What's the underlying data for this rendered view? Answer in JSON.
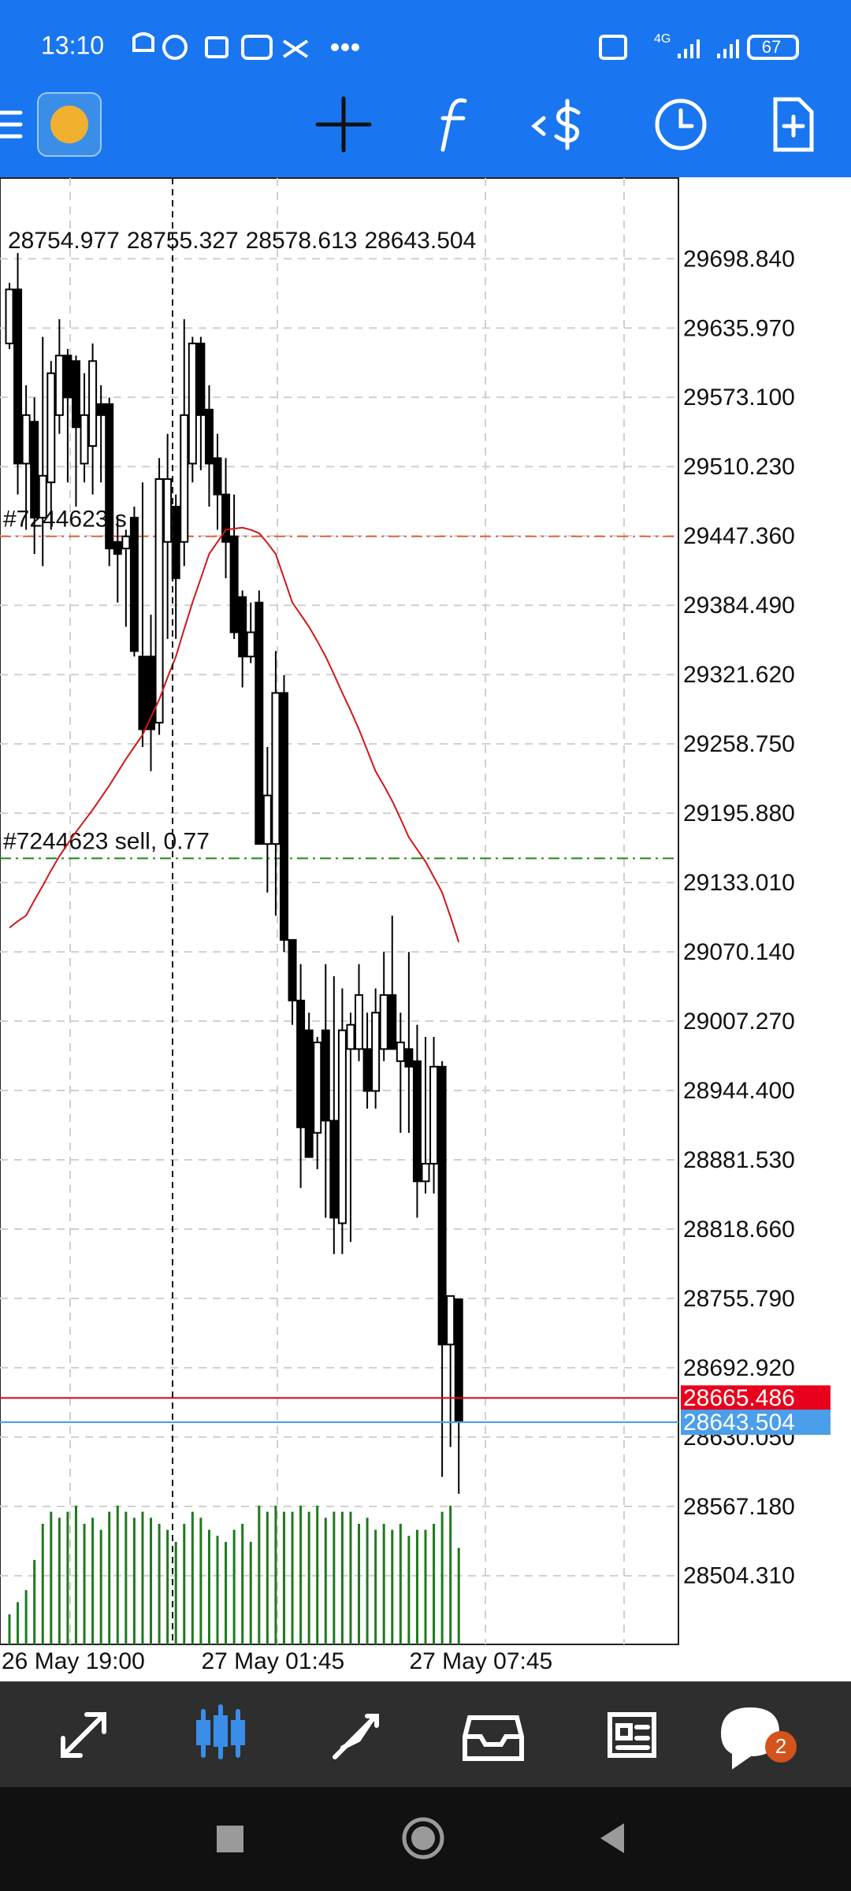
{
  "status_bar": {
    "time": "13:10",
    "network": "4G",
    "battery": "67"
  },
  "chart_data": {
    "type": "candlestick",
    "categories": [
      "26 May 19:00",
      null,
      null,
      null,
      null,
      null,
      null,
      null,
      null,
      null,
      null,
      null,
      null,
      null,
      null,
      null,
      null,
      null,
      null,
      null,
      null,
      null,
      null,
      null,
      "27 May 01:45",
      null,
      null,
      null,
      null,
      null,
      null,
      null,
      null,
      null,
      null,
      null,
      null,
      null,
      null,
      null,
      null,
      null,
      null,
      null,
      null,
      null,
      null,
      null,
      null,
      "27 May 07:45",
      null,
      null,
      null,
      null,
      null
    ],
    "open": [
      29622,
      29671,
      29513,
      29551,
      29464,
      29496,
      29557,
      29611,
      29606,
      29513,
      29529,
      29567,
      29567,
      29442,
      29436,
      29464,
      29338,
      29338,
      29278,
      29442,
      29474,
      29442,
      29513,
      29622,
      29562,
      29518,
      29485,
      29447,
      29392,
      29338,
      29387,
      29168,
      29168,
      29305,
      29081,
      29026,
      28999,
      28906,
      28999,
      28917,
      28824,
      28982,
      28982,
      28982,
      28944,
      28982,
      29031,
      28971,
      28982,
      28971,
      28862,
      28878,
      28966,
      28714,
      28754.977
    ],
    "high": [
      29677,
      29704,
      29584,
      29573,
      29628,
      29606,
      29644,
      29617,
      29611,
      29595,
      29622,
      29584,
      29573,
      29464,
      29453,
      29474,
      29496,
      29376,
      29518,
      29540,
      29485,
      29644,
      29628,
      29628,
      29584,
      29540,
      29518,
      29485,
      29398,
      29387,
      29398,
      29256,
      29343,
      29321,
      29081,
      29059,
      29015,
      28993,
      29059,
      29048,
      29037,
      29015,
      29059,
      29015,
      29037,
      29070,
      29103,
      29015,
      29070,
      29004,
      28993,
      28993,
      28971,
      28758,
      28755.327
    ],
    "low": [
      29617,
      29485,
      29453,
      29431,
      29420,
      29453,
      29540,
      29496,
      29474,
      29496,
      29485,
      29496,
      29420,
      29387,
      29365,
      29338,
      29256,
      29234,
      29267,
      29354,
      29354,
      29420,
      29496,
      29507,
      29474,
      29453,
      29409,
      29354,
      29310,
      29332,
      29168,
      29124,
      29103,
      29070,
      29004,
      28856,
      28884,
      28873,
      28829,
      28796,
      28796,
      28807,
      28971,
      28928,
      28928,
      28971,
      28982,
      28906,
      28906,
      28829,
      28851,
      28851,
      28594,
      28621,
      28578.613
    ],
    "close": [
      29671,
      29513,
      29557,
      29464,
      29502,
      29595,
      29611,
      29573,
      29546,
      29557,
      29606,
      29557,
      29436,
      29431,
      29447,
      29343,
      29272,
      29272,
      29499,
      29499,
      29409,
      29557,
      29622,
      29557,
      29513,
      29485,
      29442,
      29360,
      29338,
      29360,
      29168,
      29212,
      29305,
      29081,
      29026,
      28911,
      28884,
      28988,
      28917,
      28829,
      28999,
      29004,
      29031,
      28944,
      29015,
      29031,
      28982,
      28988,
      28966,
      28862,
      28878,
      28966,
      28714,
      28758,
      28643.504
    ],
    "ma": {
      "color": "#d01818",
      "values": [
        29092,
        29098,
        29103,
        29117,
        29130,
        29144,
        29157,
        29168,
        29179,
        29189,
        29199,
        29210,
        29221,
        29233,
        29245,
        29256,
        29267,
        29283,
        29299,
        29319,
        29338,
        29363,
        29387,
        29409,
        29431,
        29442,
        29453,
        29454,
        29455,
        29453,
        29450,
        29441,
        29431,
        29409,
        29387,
        29376,
        29365,
        29352,
        29338,
        29322,
        29305,
        29289,
        29272,
        29253,
        29234,
        29221,
        29207,
        29191,
        29174,
        29163,
        29152,
        29138,
        29124,
        29102,
        29079
      ]
    },
    "volume": {
      "color": "#1e7a1e",
      "values": [
        25,
        35,
        45,
        70,
        100,
        110,
        105,
        110,
        115,
        100,
        105,
        95,
        110,
        115,
        110,
        105,
        110,
        105,
        100,
        95,
        85,
        100,
        110,
        105,
        95,
        90,
        85,
        95,
        100,
        85,
        115,
        110,
        115,
        110,
        110,
        115,
        110,
        115,
        105,
        110,
        110,
        110,
        100,
        105,
        95,
        100,
        95,
        100,
        90,
        95,
        95,
        100,
        110,
        115,
        80
      ]
    },
    "ylim": [
      28442,
      29772
    ],
    "yticks": [
      {
        "value": 29698.84,
        "label": "29698.840"
      },
      {
        "value": 29635.97,
        "label": "29635.970"
      },
      {
        "value": 29573.1,
        "label": "29573.100"
      },
      {
        "value": 29510.23,
        "label": "29510.230"
      },
      {
        "value": 29447.36,
        "label": "29447.360"
      },
      {
        "value": 29384.49,
        "label": "29384.490"
      },
      {
        "value": 29321.62,
        "label": "29321.620"
      },
      {
        "value": 29258.75,
        "label": "29258.750"
      },
      {
        "value": 29195.88,
        "label": "29195.880"
      },
      {
        "value": 29133.01,
        "label": "29133.010"
      },
      {
        "value": 29070.14,
        "label": "29070.140"
      },
      {
        "value": 29007.27,
        "label": "29007.270"
      },
      {
        "value": 28944.4,
        "label": "28944.400"
      },
      {
        "value": 28881.53,
        "label": "28881.530"
      },
      {
        "value": 28818.66,
        "label": "28818.660"
      },
      {
        "value": 28755.79,
        "label": "28755.790"
      },
      {
        "value": 28692.92,
        "label": "28692.920"
      },
      {
        "value": 28630.05,
        "label": "28630.050"
      },
      {
        "value": 28567.18,
        "label": "28567.180"
      },
      {
        "value": 28504.31,
        "label": "28504.310"
      }
    ],
    "grid": true,
    "order_lines": [
      {
        "label": "#7244623 s",
        "price": 29447,
        "color": "#e0603a"
      },
      {
        "label": "#7244623 sell, 0.77",
        "price": 29155,
        "color": "#1a8a1a"
      }
    ],
    "price_lines": [
      {
        "price": 28665.486,
        "color": "#e8001c"
      },
      {
        "price": 28643.504,
        "color": "#4a9eea"
      }
    ]
  },
  "bottom_nav": {
    "chat_badge": "2"
  }
}
